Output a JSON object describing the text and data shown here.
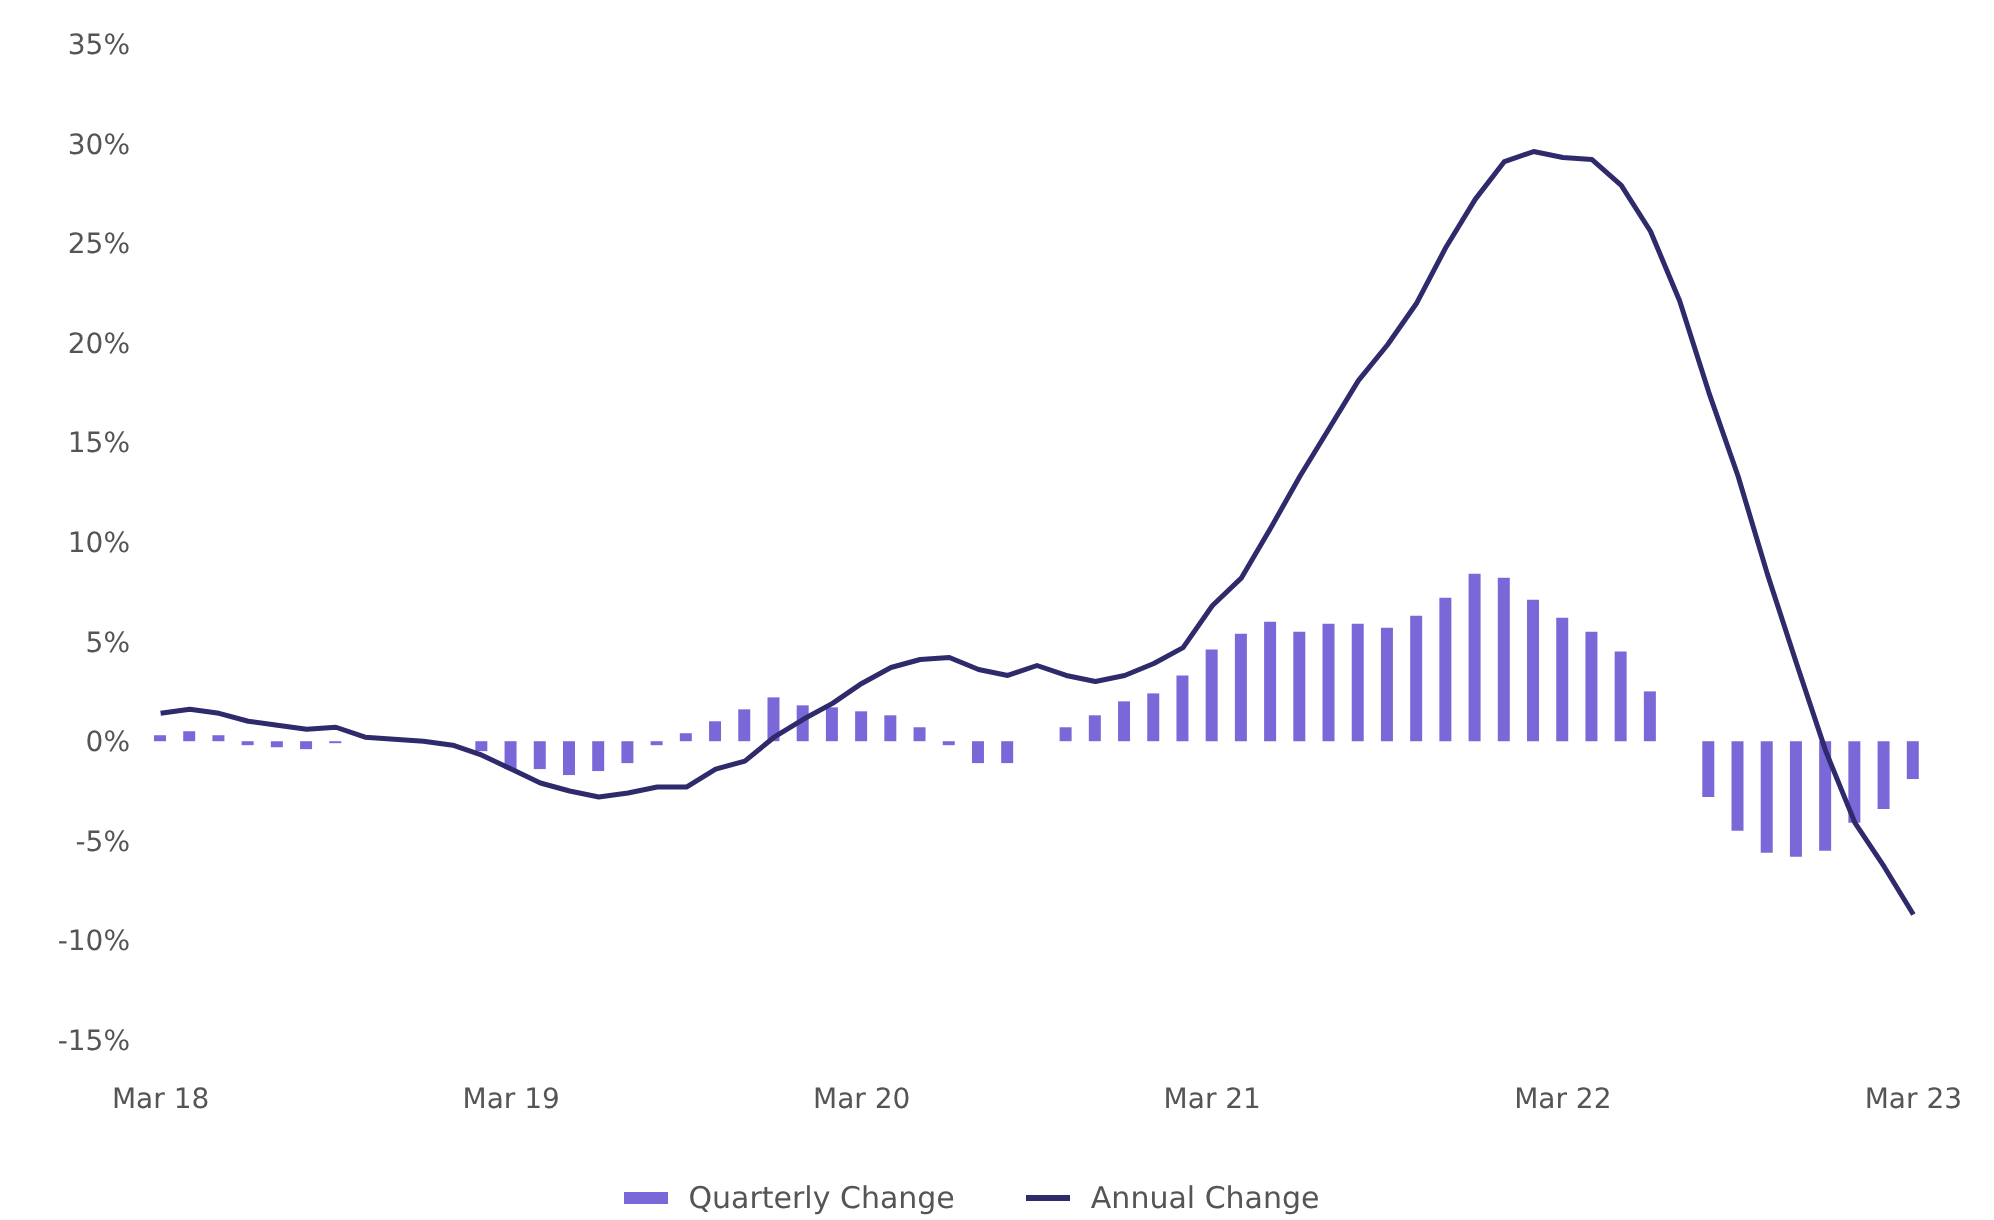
{
  "chart_data": {
    "type": "bar",
    "categories": [
      "Mar 18",
      null,
      null,
      null,
      null,
      null,
      null,
      null,
      null,
      null,
      null,
      null,
      "Mar 19",
      null,
      null,
      null,
      null,
      null,
      null,
      null,
      null,
      null,
      null,
      null,
      "Mar 20",
      null,
      null,
      null,
      null,
      null,
      null,
      null,
      null,
      null,
      null,
      null,
      "Mar 21",
      null,
      null,
      null,
      null,
      null,
      null,
      null,
      null,
      null,
      null,
      null,
      "Mar 22",
      null,
      null,
      null,
      null,
      null,
      null,
      null,
      null,
      null,
      null,
      null,
      "Mar 23"
    ],
    "series": [
      {
        "name": "Quarterly Change",
        "color": "#7b68d8",
        "values": [
          0.3,
          0.5,
          0.3,
          -0.2,
          -0.3,
          -0.4,
          -0.1,
          0,
          0,
          0,
          null,
          -0.5,
          -1.4,
          -1.4,
          -1.7,
          -1.5,
          -1.1,
          -0.2,
          0.4,
          1.0,
          1.6,
          2.2,
          1.8,
          1.7,
          1.5,
          1.3,
          0.7,
          -0.2,
          -1.1,
          -1.1,
          0,
          0.7,
          1.3,
          2.0,
          2.4,
          3.3,
          4.6,
          5.4,
          6.0,
          5.5,
          5.9,
          5.9,
          5.7,
          6.3,
          7.2,
          8.4,
          8.2,
          7.1,
          6.2,
          5.5,
          4.5,
          2.5,
          0,
          -2.8,
          -4.5,
          -5.6,
          -5.8,
          -5.5,
          -4.1,
          -3.4,
          -1.9
        ]
      },
      {
        "name": "Annual Change",
        "type": "line",
        "color": "#2e2a6b",
        "values": [
          1.4,
          1.6,
          1.4,
          1.0,
          0.8,
          0.6,
          0.7,
          0.2,
          0.1,
          0,
          -0.2,
          -0.7,
          -1.4,
          -2.1,
          -2.5,
          -2.8,
          -2.6,
          -2.3,
          -2.3,
          -1.4,
          -1.0,
          0.2,
          1.1,
          1.9,
          2.9,
          3.7,
          4.1,
          4.2,
          3.6,
          3.3,
          3.8,
          3.3,
          3.0,
          3.3,
          3.9,
          4.7,
          6.8,
          8.2,
          10.7,
          13.3,
          15.7,
          18.1,
          19.9,
          22.0,
          24.8,
          27.2,
          29.1,
          29.6,
          29.3,
          29.2,
          27.9,
          25.6,
          22.1,
          17.5,
          13.3,
          8.4,
          3.9,
          -0.5,
          -4.1,
          -6.3,
          -8.7
        ]
      }
    ],
    "ylim": [
      -15,
      35
    ],
    "yticks": [
      {
        "value": -15,
        "label": "-15%"
      },
      {
        "value": -10,
        "label": "-10%"
      },
      {
        "value": -5,
        "label": "-5%"
      },
      {
        "value": 0,
        "label": "0%"
      },
      {
        "value": 5,
        "label": "5%"
      },
      {
        "value": 10,
        "label": "10%"
      },
      {
        "value": 15,
        "label": "15%"
      },
      {
        "value": 20,
        "label": "20%"
      },
      {
        "value": 25,
        "label": "25%"
      },
      {
        "value": 30,
        "label": "30%"
      },
      {
        "value": 35,
        "label": "35%"
      }
    ],
    "grid": false,
    "legend": "bottom",
    "marker": "none",
    "line_style": "solid"
  }
}
